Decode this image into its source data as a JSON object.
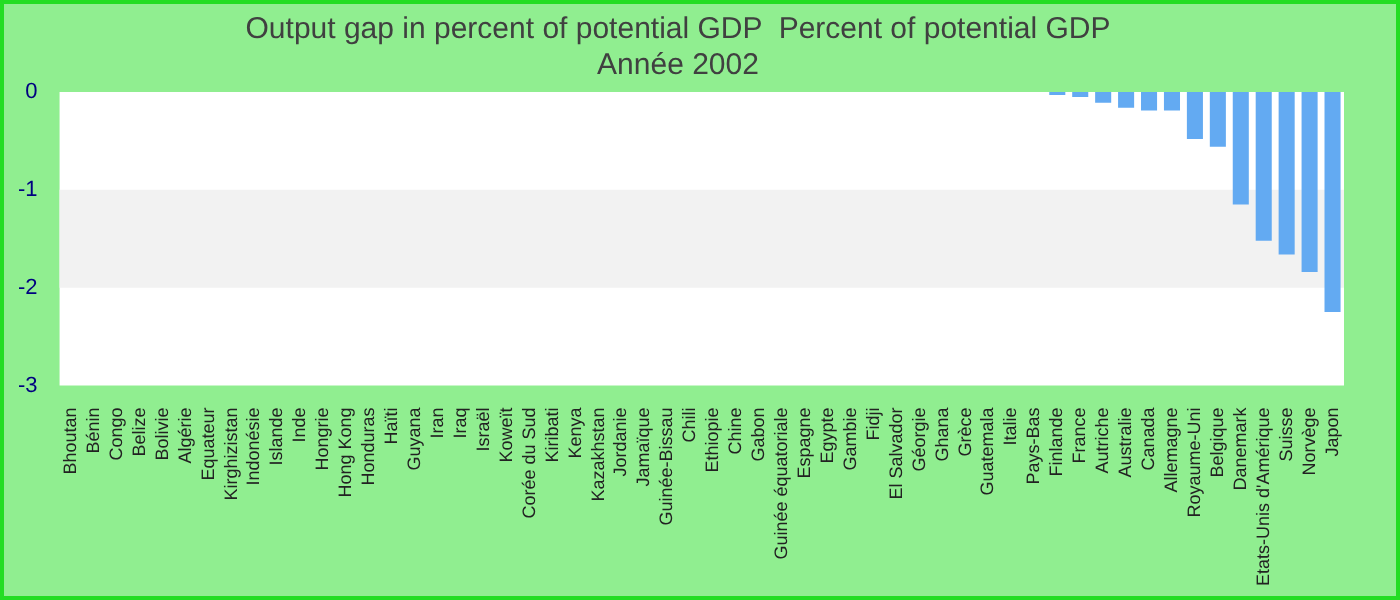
{
  "chart_data": {
    "type": "bar",
    "title": "Output gap in percent of potential GDP  Percent of potential GDP",
    "subtitle": "Année 2002",
    "categories": [
      "Bhoutan",
      "Bénin",
      "Congo",
      "Belize",
      "Bolivie",
      "Algérie",
      "Equateur",
      "Kirghizistan",
      "Indonésie",
      "Islande",
      "Inde",
      "Hongrie",
      "Hong Kong",
      "Honduras",
      "Haïti",
      "Guyana",
      "Iran",
      "Iraq",
      "Israël",
      "Koweït",
      "Corée du Sud",
      "Kiribati",
      "Kenya",
      "Kazakhstan",
      "Jordanie",
      "Jamaïque",
      "Guinée-Bissau",
      "Chili",
      "Ethiopie",
      "Chine",
      "Gabon",
      "Guinée équatoriale",
      "Espagne",
      "Egypte",
      "Gambie",
      "Fidji",
      "El Salvador",
      "Géorgie",
      "Ghana",
      "Grèce",
      "Guatemala",
      "Italie",
      "Pays-Bas",
      "Finlande",
      "France",
      "Autriche",
      "Australie",
      "Canada",
      "Allemagne",
      "Royaume-Uni",
      "Belgique",
      "Danemark",
      "Etats-Unis d'Amérique",
      "Suisse",
      "Norvège",
      "Japon"
    ],
    "values": [
      0,
      0,
      0,
      0,
      0,
      0,
      0,
      0,
      0,
      0,
      0,
      0,
      0,
      0,
      0,
      0,
      0,
      0,
      0,
      0,
      0,
      0,
      0,
      0,
      0,
      0,
      0,
      0,
      0,
      0,
      0,
      0,
      0,
      0,
      0,
      0,
      0,
      0,
      0,
      0,
      0,
      0,
      0,
      -0.03,
      -0.05,
      -0.11,
      -0.16,
      -0.19,
      -0.19,
      -0.48,
      -0.56,
      -1.15,
      -1.52,
      -1.66,
      -1.84,
      -2.25
    ],
    "color": "#63aaf2",
    "ylim": [
      -3,
      0
    ],
    "yticks": [
      0,
      -1,
      -2,
      -3
    ],
    "bands": [
      {
        "axis": "y",
        "from": -2,
        "to": -1,
        "color": "#f2f2f2"
      }
    ]
  }
}
